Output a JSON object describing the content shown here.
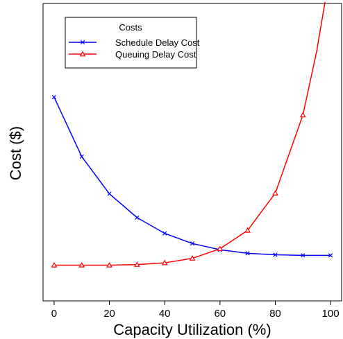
{
  "chart_data": {
    "type": "line",
    "title": "",
    "xlabel": "Capacity Utilization (%)",
    "ylabel": "Cost ($)",
    "xlim": [
      -4,
      104
    ],
    "ylim": [
      0,
      1
    ],
    "x_ticks": [
      "0",
      "20",
      "40",
      "60",
      "80",
      "100"
    ],
    "x": [
      0,
      10,
      20,
      30,
      40,
      50,
      60,
      70,
      80,
      90,
      100
    ],
    "grid": false,
    "y_ticks_shown": false,
    "legend": {
      "title": "Costs",
      "position": "top-left"
    },
    "series": [
      {
        "name": "Schedule Delay Cost",
        "color": "#0000ff",
        "marker": "x",
        "x": [
          0,
          10,
          20,
          30,
          40,
          50,
          60,
          70,
          80,
          90,
          100
        ],
        "y": [
          0.685,
          0.485,
          0.36,
          0.28,
          0.227,
          0.193,
          0.172,
          0.16,
          0.155,
          0.153,
          0.153
        ]
      },
      {
        "name": "Queuing Delay Cost",
        "color": "#ff0000",
        "marker": "triangle",
        "x": [
          0,
          10,
          20,
          30,
          40,
          50,
          60,
          70,
          80,
          90,
          95,
          98
        ],
        "y": [
          0.12,
          0.12,
          0.12,
          0.122,
          0.128,
          0.143,
          0.175,
          0.237,
          0.362,
          0.625,
          0.84,
          1.005
        ],
        "marker_points": 10
      }
    ]
  }
}
